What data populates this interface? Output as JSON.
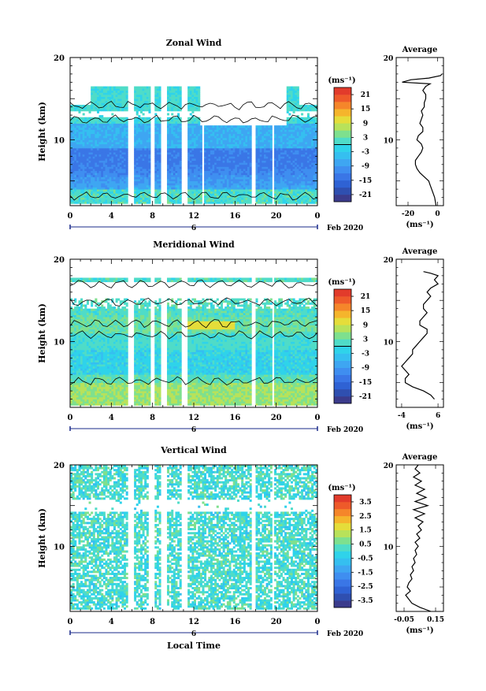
{
  "chart_data": [
    {
      "type": "heatmap",
      "title": "Zonal Wind",
      "ylabel": "Height (km)",
      "xlabel": "",
      "ylim": [
        2,
        20
      ],
      "xlim": [
        0,
        24
      ],
      "y_ticks": [
        "20",
        "10"
      ],
      "x_ticks": [
        "0",
        "4",
        "8",
        "12",
        "16",
        "20",
        "0"
      ],
      "date_day": "6",
      "date_label": "Feb 2020",
      "colorbar": {
        "unit_label": "(ms⁻¹)",
        "min": -24,
        "max": 24,
        "tick_labels": [
          "21",
          "15",
          "9",
          "3",
          "-3",
          "-9",
          "-15",
          "-21"
        ],
        "tick_values": [
          21,
          15,
          9,
          3,
          -3,
          -9,
          -15,
          -21
        ],
        "zero_line": 0
      },
      "data_gaps_local_time": [
        [
          5.7,
          6.2
        ],
        [
          7.8,
          8.2
        ],
        [
          8.9,
          9.3
        ],
        [
          10.8,
          11.3
        ],
        [
          12.8,
          13.0
        ],
        [
          17.7,
          18.0
        ],
        [
          19.6,
          19.8
        ]
      ],
      "profile": {
        "title": "Average",
        "xlabel": "(ms⁻¹)",
        "xlim": [
          -28,
          4
        ],
        "x_ticks": [
          "-20",
          "0"
        ],
        "x_tick_values": [
          -20,
          0
        ],
        "y_ticks": [
          "20",
          "10"
        ],
        "points": [
          [
            -1,
            2
          ],
          [
            -1.5,
            2.5
          ],
          [
            -2,
            3
          ],
          [
            -3,
            3.5
          ],
          [
            -4,
            4
          ],
          [
            -5,
            4.5
          ],
          [
            -6,
            5
          ],
          [
            -9,
            5.5
          ],
          [
            -12,
            6
          ],
          [
            -14,
            6.5
          ],
          [
            -15,
            7
          ],
          [
            -15,
            7.5
          ],
          [
            -13,
            8
          ],
          [
            -11,
            8.5
          ],
          [
            -10,
            9
          ],
          [
            -11,
            9.5
          ],
          [
            -14,
            10
          ],
          [
            -13,
            10.5
          ],
          [
            -10,
            11
          ],
          [
            -10,
            11.5
          ],
          [
            -12,
            12
          ],
          [
            -11,
            12.5
          ],
          [
            -10,
            13
          ],
          [
            -11,
            13.5
          ],
          [
            -9,
            14
          ],
          [
            -9,
            14.5
          ],
          [
            -8,
            15
          ],
          [
            -8,
            15.5
          ],
          [
            -10,
            16
          ],
          [
            -8,
            16.5
          ],
          [
            -5,
            16.8
          ],
          [
            -24,
            17
          ],
          [
            -18,
            17.3
          ],
          [
            -6,
            17.5
          ],
          [
            2,
            17.8
          ],
          [
            3,
            18
          ]
        ]
      }
    },
    {
      "type": "heatmap",
      "title": "Meridional Wind",
      "ylabel": "Height (km)",
      "xlabel": "",
      "ylim": [
        2,
        20
      ],
      "xlim": [
        0,
        24
      ],
      "y_ticks": [
        "20",
        "10"
      ],
      "x_ticks": [
        "0",
        "4",
        "8",
        "12",
        "16",
        "20",
        "0"
      ],
      "date_day": "6",
      "date_label": "Feb 2020",
      "colorbar": {
        "unit_label": "(ms⁻¹)",
        "min": -24,
        "max": 24,
        "tick_labels": [
          "21",
          "15",
          "9",
          "3",
          "-3",
          "-9",
          "-15",
          "-21"
        ],
        "tick_values": [
          21,
          15,
          9,
          3,
          -3,
          -9,
          -15,
          -21
        ],
        "zero_line": 0
      },
      "data_gaps_local_time": [
        [
          5.7,
          6.2
        ],
        [
          7.8,
          8.2
        ],
        [
          8.9,
          9.3
        ],
        [
          10.8,
          11.3
        ],
        [
          17.7,
          18.0
        ],
        [
          19.6,
          19.8
        ]
      ],
      "profile": {
        "title": "Average",
        "xlabel": "(ms⁻¹)",
        "xlim": [
          -5.5,
          7.5
        ],
        "x_ticks": [
          "-4",
          "6"
        ],
        "x_tick_values": [
          -4,
          6
        ],
        "y_ticks": [
          "20",
          "10"
        ],
        "points": [
          [
            5,
            3
          ],
          [
            4,
            3.5
          ],
          [
            2,
            4
          ],
          [
            -1,
            4.5
          ],
          [
            -3,
            5
          ],
          [
            -3,
            5.5
          ],
          [
            -2,
            6
          ],
          [
            -3,
            6.5
          ],
          [
            -4,
            7
          ],
          [
            -3,
            7.5
          ],
          [
            -2,
            8
          ],
          [
            -1,
            8.5
          ],
          [
            -1,
            9
          ],
          [
            0,
            9.5
          ],
          [
            1,
            10
          ],
          [
            2,
            10.5
          ],
          [
            3,
            11
          ],
          [
            3,
            11.5
          ],
          [
            1,
            12
          ],
          [
            1,
            12.5
          ],
          [
            2,
            13
          ],
          [
            3,
            13.5
          ],
          [
            2,
            14
          ],
          [
            2,
            14.5
          ],
          [
            3,
            15
          ],
          [
            4,
            15.5
          ],
          [
            3,
            16
          ],
          [
            4,
            16.5
          ],
          [
            6,
            17
          ],
          [
            5,
            17.5
          ],
          [
            6,
            18
          ],
          [
            4,
            18.3
          ],
          [
            2,
            18.5
          ]
        ]
      }
    },
    {
      "type": "heatmap",
      "title": "Vertical Wind",
      "ylabel": "Height (km)",
      "xlabel": "Local Time",
      "ylim": [
        2,
        20
      ],
      "xlim": [
        0,
        24
      ],
      "y_ticks": [
        "20",
        "10"
      ],
      "x_ticks": [
        "0",
        "4",
        "8",
        "12",
        "16",
        "20",
        "0"
      ],
      "date_day": "6",
      "date_label": "Feb 2020",
      "colorbar": {
        "unit_label": "(ms⁻¹)",
        "min": -4,
        "max": 4,
        "tick_labels": [
          "3.5",
          "2.5",
          "1.5",
          "0.5",
          "-0.5",
          "-1.5",
          "-2.5",
          "-3.5"
        ],
        "tick_values": [
          3.5,
          2.5,
          1.5,
          0.5,
          -0.5,
          -1.5,
          -2.5,
          -3.5
        ],
        "zero_line": null
      },
      "data_gaps_local_time": [
        [
          5.7,
          6.2
        ],
        [
          7.6,
          8.2
        ],
        [
          8.9,
          9.3
        ],
        [
          10.8,
          11.3
        ],
        [
          17.7,
          18.0
        ],
        [
          19.6,
          19.8
        ]
      ],
      "profile": {
        "title": "Average",
        "xlabel": "(ms⁻¹)",
        "xlim": [
          -0.1,
          0.2
        ],
        "x_ticks": [
          "-0.05",
          "0.15"
        ],
        "x_tick_values": [
          -0.05,
          0.15
        ],
        "y_ticks": [
          "20",
          "10"
        ],
        "points": [
          [
            0.12,
            2
          ],
          [
            0.05,
            2.5
          ],
          [
            0.0,
            3
          ],
          [
            -0.02,
            3.5
          ],
          [
            -0.04,
            4
          ],
          [
            -0.01,
            4.5
          ],
          [
            -0.03,
            5
          ],
          [
            -0.02,
            5.5
          ],
          [
            0.0,
            6
          ],
          [
            -0.01,
            6.5
          ],
          [
            0.01,
            7
          ],
          [
            0.0,
            7.5
          ],
          [
            0.02,
            8
          ],
          [
            0.01,
            8.5
          ],
          [
            0.03,
            9
          ],
          [
            0.02,
            9.5
          ],
          [
            0.04,
            10
          ],
          [
            0.02,
            10.5
          ],
          [
            0.05,
            11
          ],
          [
            0.03,
            11.5
          ],
          [
            0.06,
            12
          ],
          [
            0.04,
            12.5
          ],
          [
            0.07,
            13
          ],
          [
            0.02,
            13.5
          ],
          [
            0.08,
            14
          ],
          [
            0.01,
            14.5
          ],
          [
            0.1,
            15
          ],
          [
            0.02,
            15.5
          ],
          [
            0.09,
            16
          ],
          [
            0.03,
            16.5
          ],
          [
            0.08,
            17
          ],
          [
            0.02,
            17.5
          ],
          [
            0.06,
            18
          ],
          [
            0.01,
            18.5
          ],
          [
            0.05,
            19
          ],
          [
            0.02,
            19.5
          ],
          [
            0.04,
            20
          ]
        ]
      }
    }
  ]
}
